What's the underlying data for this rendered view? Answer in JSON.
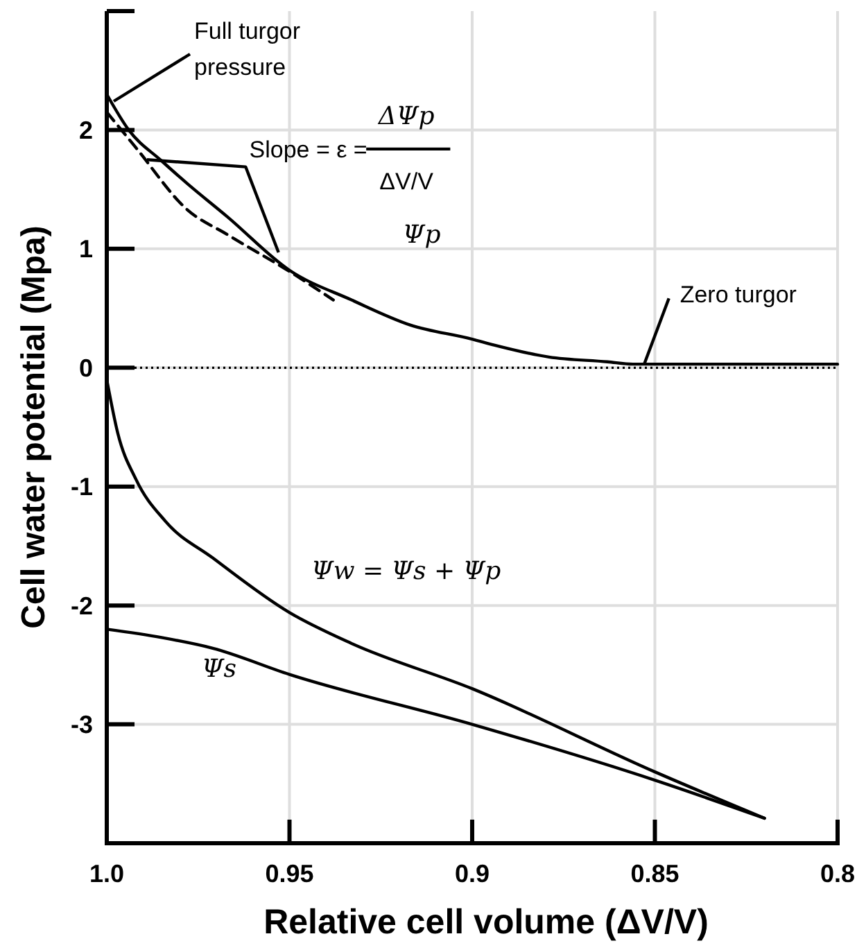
{
  "chart_data": {
    "type": "line",
    "xlabel": "Relative cell volume (ΔV/V)",
    "ylabel": "Cell water potential (Mpa)",
    "xlim": [
      1.0,
      0.8
    ],
    "xticks": [
      {
        "value": 1,
        "label": "1.0"
      },
      0.95,
      0.9,
      0.85,
      0.8
    ],
    "ylim": [
      -4,
      3
    ],
    "yticks": [
      2,
      1,
      0,
      -1,
      -2,
      -3
    ],
    "grid": true,
    "ref_lines": [
      {
        "axis": "y",
        "value": 0,
        "color": "#000000",
        "line_style": "dotted"
      }
    ],
    "annotations": [
      {
        "text": "Full turgor pressure",
        "x": 1.0,
        "y": 2.3
      },
      {
        "text": "Zero turgor",
        "x": 0.853,
        "y": 0
      },
      "Slope = ε =",
      "ΔΨp",
      "ΔV/V"
    ],
    "series": [
      {
        "name": "Ψp",
        "color": "#000000",
        "line_style": "solid",
        "x": [
          1.0,
          0.994,
          0.985,
          0.978,
          0.967,
          0.95,
          0.933,
          0.917,
          0.9,
          0.894,
          0.879,
          0.863,
          0.856,
          0.84,
          0.82,
          0.8
        ],
        "values": [
          2.3,
          2.0,
          1.74,
          1.55,
          1.27,
          0.82,
          0.57,
          0.36,
          0.24,
          0.19,
          0.09,
          0.05,
          0.03,
          0.03,
          0.03,
          0.03
        ]
      },
      {
        "color": "#000000",
        "line_style": "dashed",
        "x": [
          1.0,
          0.992,
          0.978,
          0.967,
          0.95,
          0.938
        ],
        "values": [
          2.15,
          1.85,
          1.33,
          1.12,
          0.81,
          0.57
        ]
      },
      {
        "name": "Ψw = Ψs + Ψp",
        "color": "#000000",
        "line_style": "solid",
        "x": [
          1.0,
          0.997,
          0.992,
          0.984,
          0.971,
          0.95,
          0.933,
          0.9,
          0.85,
          0.82
        ],
        "values": [
          -0.1,
          -0.55,
          -0.94,
          -1.29,
          -1.6,
          -2.06,
          -2.32,
          -2.7,
          -3.4,
          -3.79
        ]
      },
      {
        "name": "Ψs",
        "color": "#000000",
        "line_style": "solid",
        "x": [
          1.0,
          0.985,
          0.971,
          0.95,
          0.9,
          0.85,
          0.82
        ],
        "values": [
          -2.2,
          -2.27,
          -2.36,
          -2.58,
          -3.0,
          -3.47,
          -3.79
        ]
      }
    ]
  }
}
